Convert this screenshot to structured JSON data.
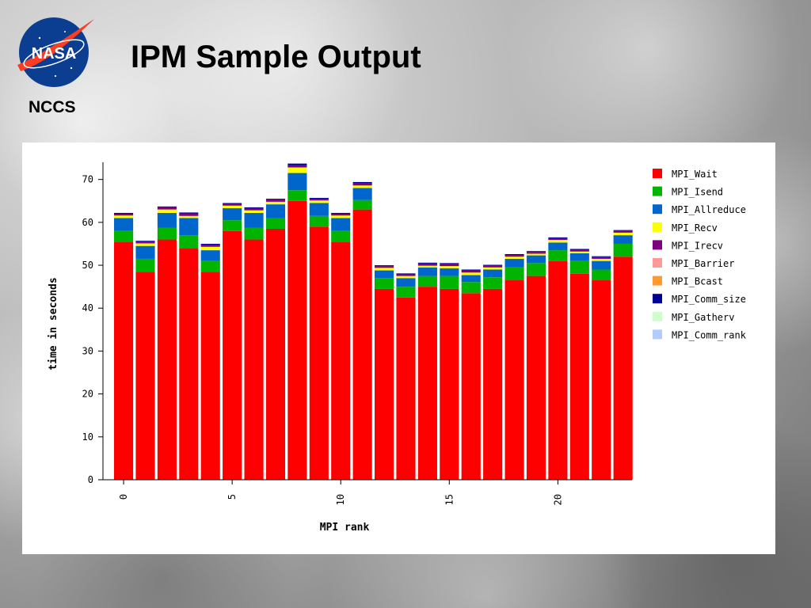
{
  "header": {
    "org_abbrev": "NCCS",
    "logo_text": "NASA",
    "title": "IPM Sample Output"
  },
  "chart_data": {
    "type": "bar",
    "stacked": true,
    "xlabel": "MPI rank",
    "ylabel": "time in seconds",
    "ylim": [
      0,
      74
    ],
    "yticks": [
      0,
      10,
      20,
      30,
      40,
      50,
      60,
      70
    ],
    "xticks": [
      0,
      5,
      10,
      15,
      20
    ],
    "legend_position": "right",
    "categories": [
      0,
      1,
      2,
      3,
      4,
      5,
      6,
      7,
      8,
      9,
      10,
      11,
      12,
      13,
      14,
      15,
      16,
      17,
      18,
      19,
      20,
      21,
      22,
      23
    ],
    "series": [
      {
        "name": "MPI_Wait",
        "color": "#ff0000",
        "values": [
          55.5,
          48.5,
          56,
          54,
          48.5,
          58,
          56,
          58.5,
          65,
          59,
          55.5,
          63,
          44.5,
          42.5,
          45,
          44.5,
          43.5,
          44.5,
          46.5,
          47.5,
          51,
          48,
          46.5,
          52
        ]
      },
      {
        "name": "MPI_Isend",
        "color": "#00b400",
        "values": [
          2.5,
          3,
          2.7,
          3,
          2.5,
          2.5,
          2.7,
          2.5,
          2.5,
          2.5,
          2.5,
          2.2,
          2.5,
          2.5,
          2.5,
          3,
          2.6,
          2.7,
          3,
          3,
          2.5,
          3,
          2.5,
          3
        ]
      },
      {
        "name": "MPI_Allreduce",
        "color": "#0066cc",
        "values": [
          3,
          3,
          3.5,
          4,
          2.5,
          2.8,
          3.5,
          3.2,
          4,
          3,
          3,
          2.8,
          1.8,
          2,
          2,
          1.8,
          1.6,
          1.8,
          2,
          1.8,
          1.8,
          1.8,
          2,
          2
        ]
      },
      {
        "name": "MPI_Recv",
        "color": "#ffff00",
        "values": [
          0.6,
          0.6,
          0.8,
          0.5,
          0.8,
          0.6,
          0.6,
          0.6,
          1.3,
          0.6,
          0.6,
          0.6,
          0.6,
          0.5,
          0.4,
          0.5,
          0.6,
          0.5,
          0.5,
          0.4,
          0.6,
          0.4,
          0.5,
          0.6
        ]
      },
      {
        "name": "MPI_Irecv",
        "color": "#7f007f",
        "values": [
          0.4,
          0.4,
          0.5,
          0.6,
          0.5,
          0.4,
          0.5,
          0.5,
          0.5,
          0.4,
          0.4,
          0.6,
          0.4,
          0.4,
          0.5,
          0.5,
          0.5,
          0.4,
          0.4,
          0.4,
          0.4,
          0.4,
          0.4,
          0.4
        ]
      },
      {
        "name": "MPI_Barrier",
        "color": "#ff9999",
        "values": [
          0,
          0,
          0,
          0,
          0,
          0,
          0,
          0,
          0,
          0,
          0,
          0,
          0,
          0,
          0,
          0,
          0,
          0,
          0,
          0,
          0,
          0,
          0,
          0
        ]
      },
      {
        "name": "MPI_Bcast",
        "color": "#ff9933",
        "values": [
          0,
          0,
          0,
          0,
          0,
          0,
          0,
          0,
          0,
          0,
          0,
          0,
          0,
          0,
          0,
          0,
          0,
          0,
          0,
          0,
          0,
          0,
          0,
          0
        ]
      },
      {
        "name": "MPI_Comm_size",
        "color": "#000099",
        "values": [
          0.2,
          0.2,
          0.2,
          0.2,
          0.2,
          0.2,
          0.2,
          0.2,
          0.4,
          0.2,
          0.2,
          0.2,
          0.2,
          0.2,
          0.2,
          0.2,
          0.2,
          0.2,
          0.2,
          0.2,
          0.2,
          0.2,
          0.2,
          0.2
        ]
      },
      {
        "name": "MPI_Gatherv",
        "color": "#ccffcc",
        "values": [
          0,
          0,
          0,
          0,
          0,
          0,
          0,
          0,
          0,
          0,
          0,
          0,
          0,
          0,
          0,
          0,
          0,
          0,
          0,
          0,
          0,
          0,
          0,
          0
        ]
      },
      {
        "name": "MPI_Comm_rank",
        "color": "#b3ccff",
        "values": [
          0,
          0,
          0,
          0,
          0,
          0,
          0,
          0,
          0,
          0,
          0,
          0,
          0,
          0,
          0,
          0,
          0,
          0,
          0,
          0,
          0,
          0,
          0,
          0
        ]
      }
    ]
  }
}
